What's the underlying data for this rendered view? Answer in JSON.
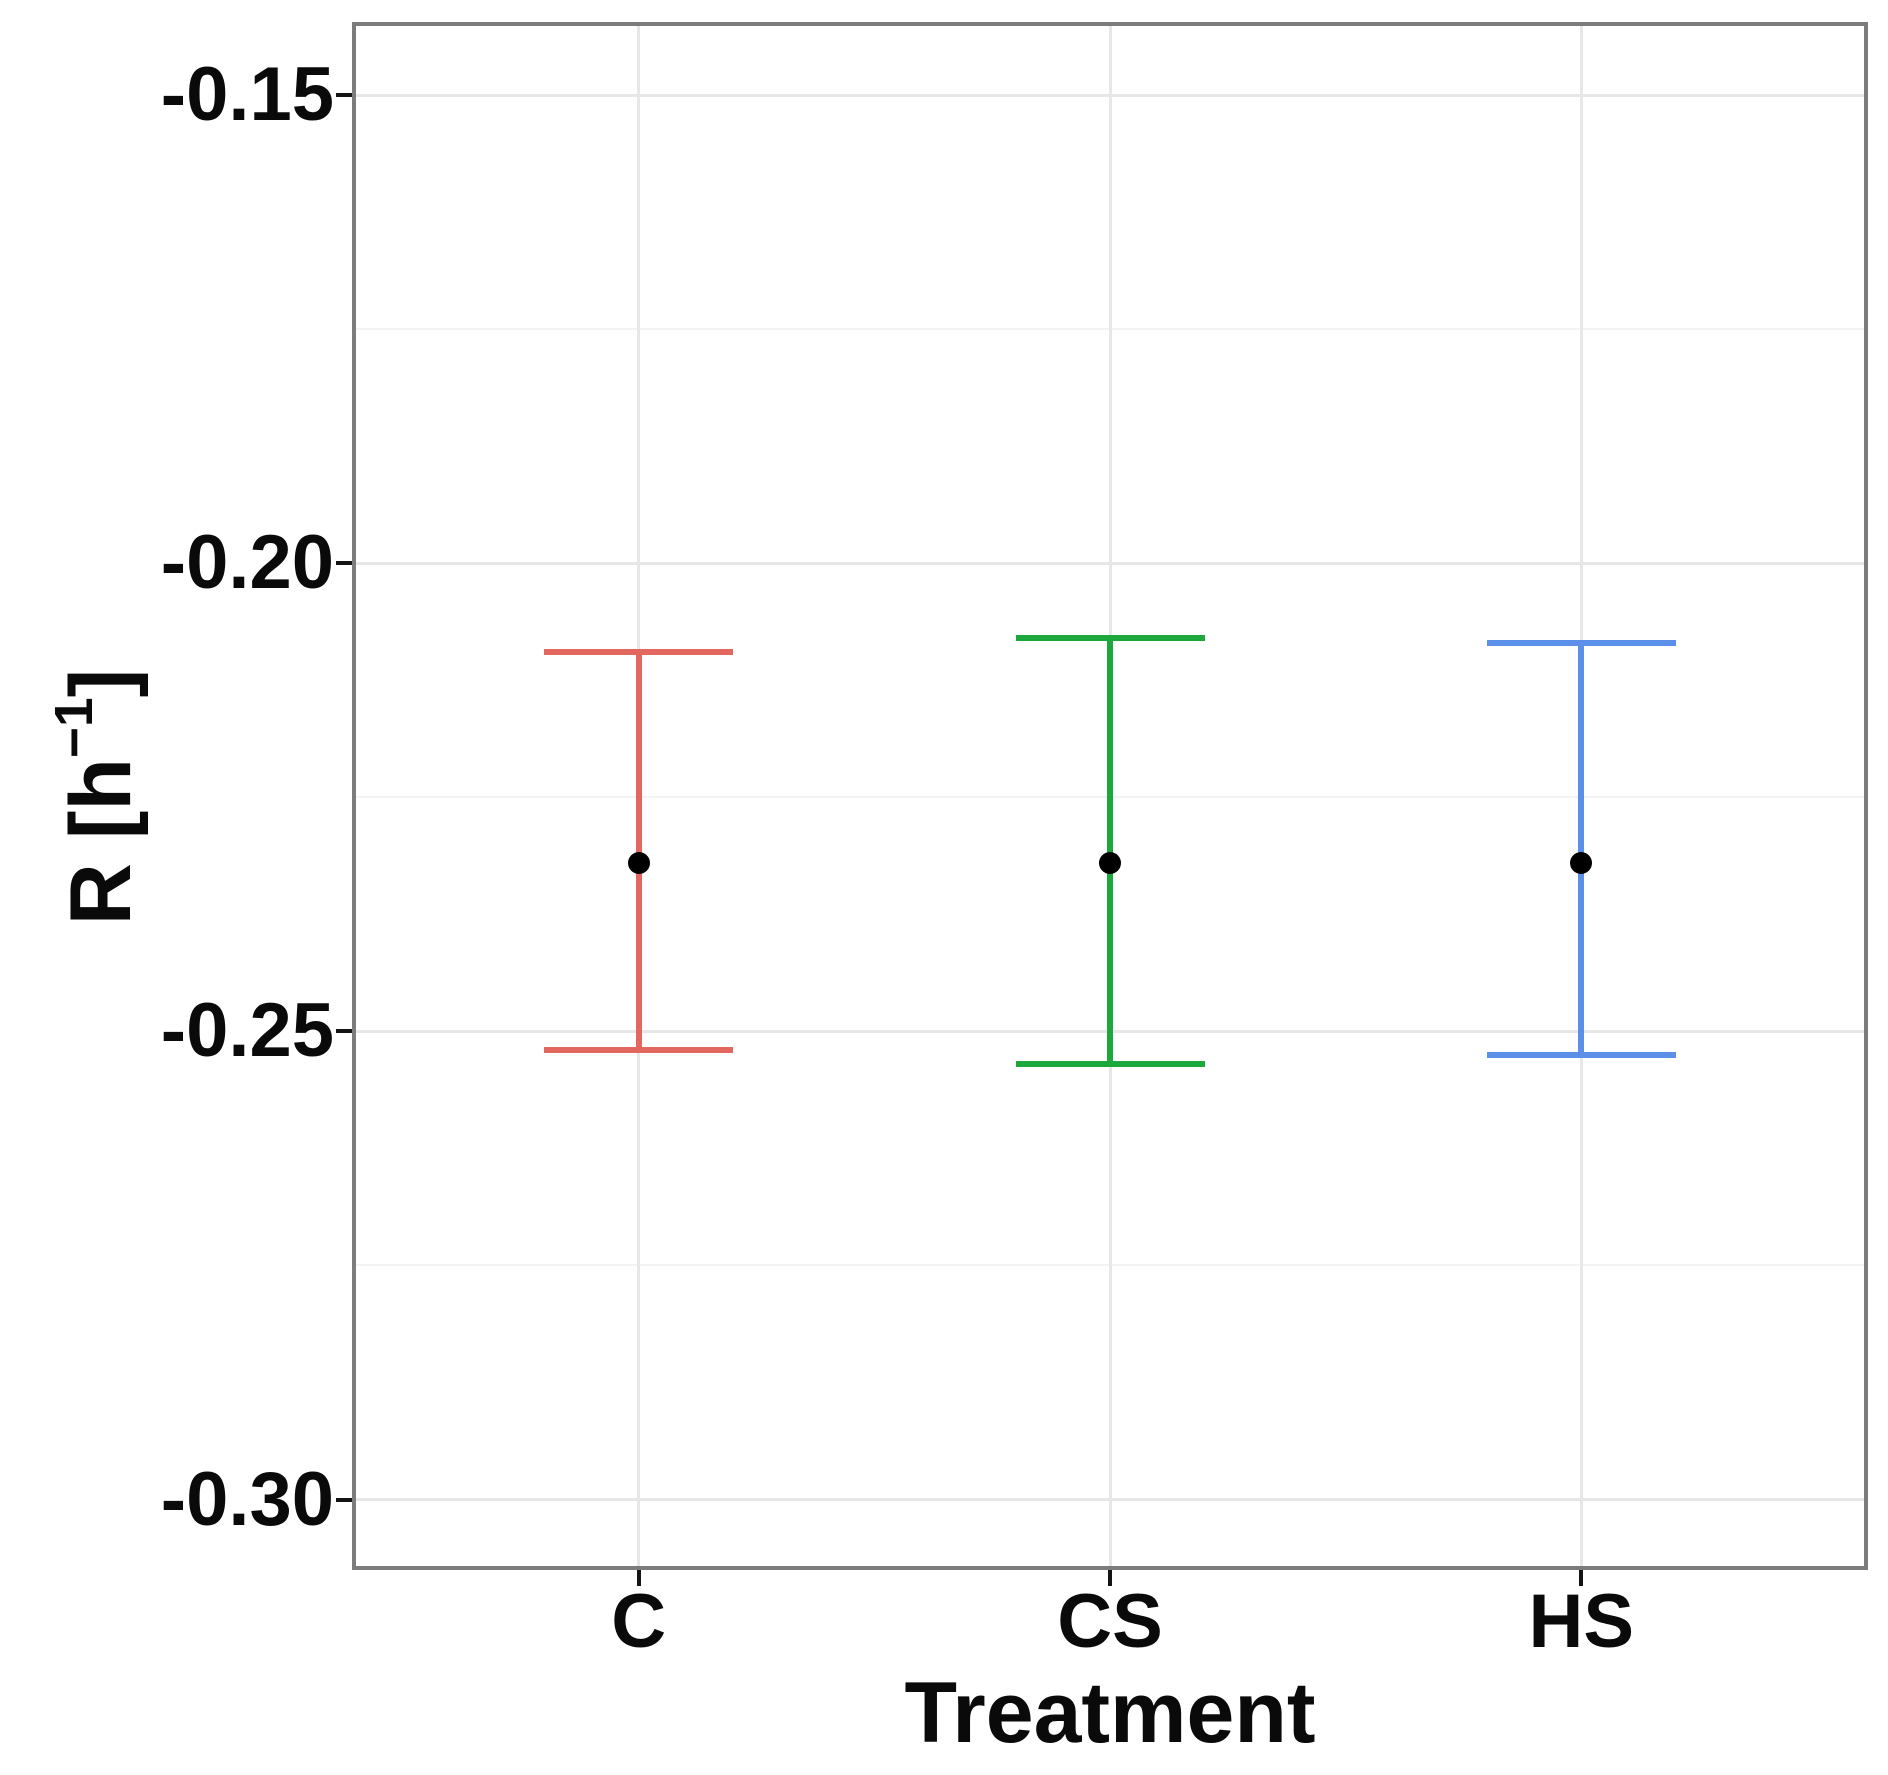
{
  "chart_data": {
    "type": "errorbar",
    "title": "",
    "xlabel": "Treatment",
    "ylabel": "R [h⁻¹]",
    "ylabel_parts": {
      "prefix": "R [h",
      "superscript": "−1",
      "suffix": "]"
    },
    "categories": [
      "C",
      "CS",
      "HS"
    ],
    "series": [
      {
        "name": "C",
        "color": "#E4675F",
        "mean": -0.232,
        "low": -0.252,
        "high": -0.2095
      },
      {
        "name": "CS",
        "color": "#1CA83C",
        "mean": -0.232,
        "low": -0.2535,
        "high": -0.208
      },
      {
        "name": "HS",
        "color": "#5C8FE8",
        "mean": -0.232,
        "low": -0.2525,
        "high": -0.2085
      }
    ],
    "point_color": "#000000",
    "ylim": [
      -0.3071,
      -0.1426
    ],
    "yticks": [
      -0.15,
      -0.2,
      -0.25,
      -0.3
    ],
    "ytick_labels": [
      "-0.15",
      "-0.20",
      "-0.25",
      "-0.30"
    ],
    "y_minor_gridlines": [
      -0.175,
      -0.225,
      -0.275
    ],
    "grid": {
      "major_color": "#E7E7E7",
      "minor_color": "#F3F3F3",
      "vertical_at_categories": true
    },
    "panel_border_color": "#7C7C7C",
    "tick_color": "#141414",
    "text_color": "#0A0A0A"
  }
}
